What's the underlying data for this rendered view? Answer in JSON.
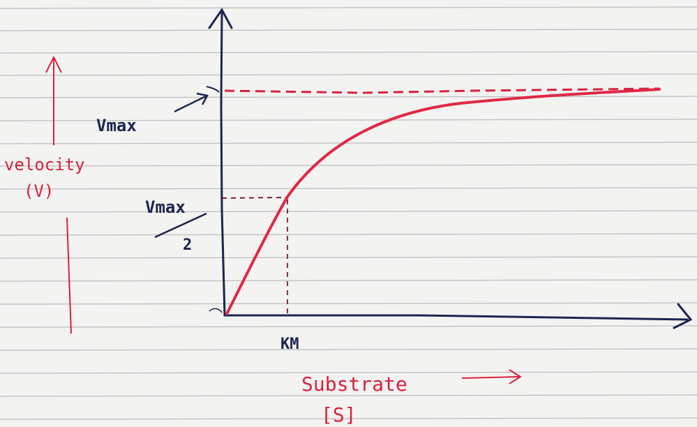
{
  "labels": {
    "vmax": "Vmax",
    "vmax_half_top": "Vmax",
    "vmax_half_bottom": "2",
    "km": "KM",
    "velocity": "velocity",
    "velocity_symbol": "(V)",
    "substrate": "Substrate",
    "substrate_symbol": "[S]"
  },
  "colors": {
    "paper": "#f3f3f1",
    "rule": "#bcbcbc",
    "ink_blue": "#1c2550",
    "ink_red": "#d8213e"
  }
}
